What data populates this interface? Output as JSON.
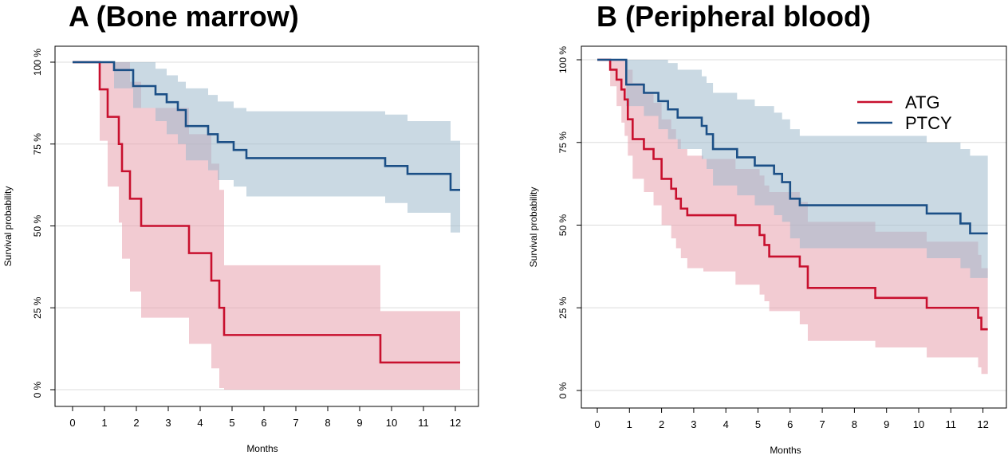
{
  "chart_data": [
    {
      "type": "line",
      "title": "A (Bone marrow)",
      "xlabel": "Months",
      "ylabel": "Survival probability",
      "xlim": [
        0,
        12.3
      ],
      "ylim": [
        0,
        100
      ],
      "x_ticks": [
        0,
        1,
        2,
        3,
        4,
        5,
        6,
        7,
        8,
        9,
        10,
        11,
        12
      ],
      "y_ticks": [
        0,
        25,
        50,
        75,
        100
      ],
      "y_tick_labels": [
        "0 %",
        "25 %",
        "50 %",
        "75 %",
        "100 %"
      ],
      "grid": true,
      "step": true,
      "series": [
        {
          "key": "ATG",
          "color": "#c8102e",
          "band_color": "#e8a0ad",
          "x": [
            0,
            0.85,
            1.1,
            1.45,
            1.55,
            1.8,
            2.15,
            3.65,
            4.35,
            4.6,
            4.75,
            9.65,
            12.15
          ],
          "y": [
            100,
            91.7,
            83.3,
            75.0,
            66.7,
            58.3,
            50.0,
            41.7,
            33.3,
            25.0,
            16.7,
            8.3,
            8.3
          ],
          "lower": [
            100,
            76,
            62,
            51,
            40,
            30,
            22,
            14,
            6.5,
            0.5,
            0,
            0,
            0
          ],
          "upper": [
            100,
            100,
            100,
            100,
            100,
            94,
            86,
            78,
            69,
            61,
            38,
            24,
            24
          ]
        },
        {
          "key": "PTCY",
          "color": "#1b4f86",
          "band_color": "#9fb9cc",
          "x": [
            0,
            1.3,
            1.9,
            2.6,
            2.95,
            3.3,
            3.55,
            4.25,
            4.55,
            5.05,
            5.45,
            9.8,
            10.5,
            11.85,
            12.15
          ],
          "y": [
            100,
            97.6,
            92.7,
            90.2,
            87.8,
            85.4,
            80.5,
            78.0,
            75.6,
            73.2,
            70.7,
            68.3,
            65.9,
            61.0,
            61.0
          ],
          "lower": [
            100,
            92,
            86,
            82,
            78,
            75,
            70,
            67,
            64,
            62,
            59,
            57,
            54,
            48,
            46
          ],
          "upper": [
            100,
            100,
            100,
            98,
            96,
            94,
            92,
            90,
            88,
            86,
            85,
            84,
            82,
            76,
            76
          ]
        }
      ]
    },
    {
      "type": "line",
      "title": "B (Peripheral blood)",
      "xlabel": "Months",
      "ylabel": "Survival probability",
      "xlim": [
        0,
        12.3
      ],
      "ylim": [
        0,
        100
      ],
      "x_ticks": [
        0,
        1,
        2,
        3,
        4,
        5,
        6,
        7,
        8,
        9,
        10,
        11,
        12
      ],
      "y_ticks": [
        0,
        25,
        50,
        75,
        100
      ],
      "y_tick_labels": [
        "0 %",
        "25 %",
        "50 %",
        "75 %",
        "100 %"
      ],
      "grid": true,
      "step": true,
      "legend": {
        "position": "top-right",
        "entries": [
          "ATG",
          "PTCY"
        ]
      },
      "series": [
        {
          "name": "ATG",
          "color": "#c8102e",
          "band_color": "#e8a0ad",
          "x": [
            0,
            0.4,
            0.6,
            0.75,
            0.85,
            0.95,
            1.1,
            1.45,
            1.75,
            2.0,
            2.3,
            2.45,
            2.6,
            2.8,
            3.3,
            4.3,
            5.05,
            5.2,
            5.35,
            6.0,
            6.3,
            6.55,
            8.65,
            10.25,
            11.85,
            11.95,
            12.15
          ],
          "y": [
            100,
            97,
            94,
            91,
            88,
            82,
            76,
            73,
            70,
            64,
            61,
            58,
            55,
            53,
            53,
            50,
            47,
            44,
            40.5,
            40.5,
            37.5,
            31,
            28,
            25,
            22,
            18.5,
            18.5
          ],
          "lower": [
            100,
            92,
            86,
            81,
            77,
            71,
            64,
            60,
            56,
            50,
            46,
            43,
            40,
            37,
            36,
            32,
            29,
            27,
            24,
            24,
            20,
            15,
            13,
            10,
            7,
            5,
            5
          ],
          "upper": [
            100,
            100,
            100,
            100,
            100,
            97,
            93,
            90,
            87,
            82,
            79,
            76,
            73,
            71,
            70,
            67,
            65,
            62,
            60,
            60,
            57,
            51,
            48,
            45,
            41,
            37,
            31
          ]
        },
        {
          "name": "PTCY",
          "color": "#1b4f86",
          "band_color": "#9fb9cc",
          "x": [
            0,
            0.9,
            1.45,
            1.9,
            2.2,
            2.5,
            3.25,
            3.4,
            3.6,
            4.35,
            4.9,
            5.5,
            5.75,
            6.0,
            6.3,
            7.5,
            10.25,
            11.3,
            11.6,
            12.15
          ],
          "y": [
            100,
            92.5,
            90,
            87.5,
            85,
            82.5,
            80,
            77.5,
            73,
            70.5,
            68,
            65.5,
            63,
            58,
            56,
            56,
            53.5,
            50.5,
            47.5,
            47.5
          ],
          "lower": [
            100,
            86,
            83,
            79,
            76,
            73,
            70,
            67,
            62,
            59,
            56,
            53,
            51,
            46,
            43,
            43,
            40,
            37,
            34,
            32
          ],
          "upper": [
            100,
            100,
            100,
            100,
            99,
            97,
            95,
            93,
            90,
            88,
            86,
            84,
            82,
            79,
            77,
            77,
            75,
            73,
            71,
            63
          ]
        }
      ]
    }
  ]
}
